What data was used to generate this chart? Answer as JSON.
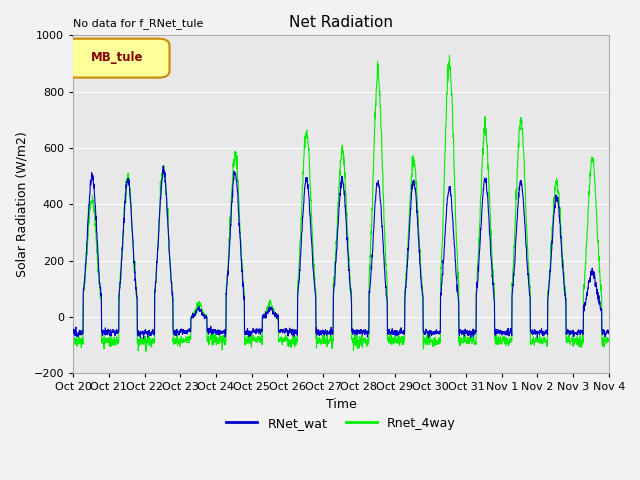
{
  "title": "Net Radiation",
  "ylabel": "Solar Radiation (W/m2)",
  "xlabel": "Time",
  "top_left_text": "No data for f_RNet_tule",
  "legend_label": "MB_tule",
  "ylim": [
    -200,
    1000
  ],
  "series": {
    "RNet_wat": {
      "color": "#0000cc",
      "label": "RNet_wat"
    },
    "Rnet_4way": {
      "color": "#00ee00",
      "label": "Rnet_4way"
    }
  },
  "xtick_labels": [
    "Oct 20",
    "Oct 21",
    "Oct 22",
    "Oct 23",
    "Oct 24",
    "Oct 25",
    "Oct 26",
    "Oct 27",
    "Oct 28",
    "Oct 29",
    "Oct 30",
    "Oct 31",
    "Nov 1",
    "Nov 2",
    "Nov 3",
    "Nov 4"
  ],
  "grid_color": "#ffffff",
  "bg_color": "#e8e8e8",
  "fig_bg_color": "#f2f2f2",
  "title_fontsize": 11,
  "label_fontsize": 9,
  "tick_fontsize": 8
}
